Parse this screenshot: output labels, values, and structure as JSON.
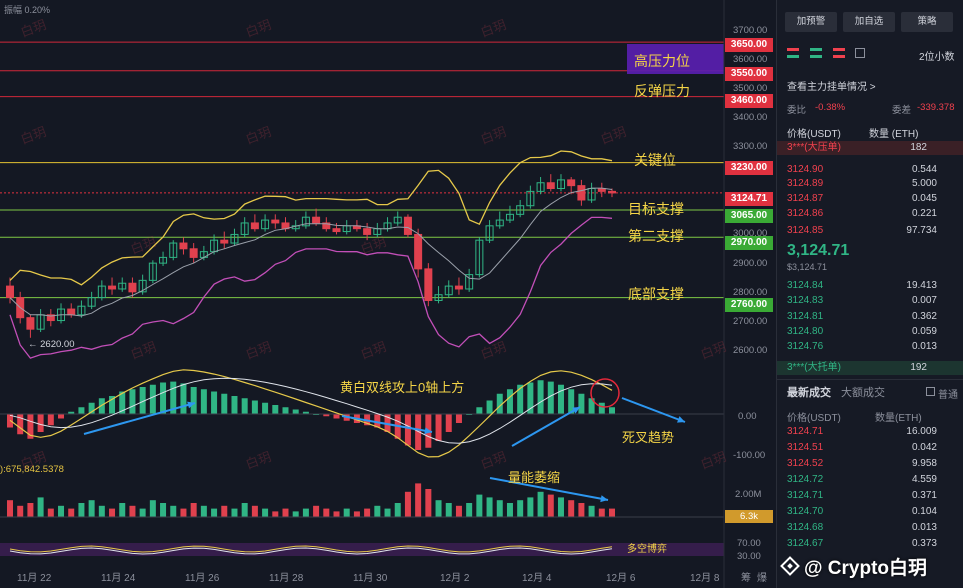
{
  "header": {
    "amplitude_label": "振幅 0.20%"
  },
  "levels": [
    {
      "label": "高压力位",
      "price": "3650.00",
      "tag_color": "#e0313f"
    },
    {
      "label": "",
      "price": "3600.00",
      "tag_color": ""
    },
    {
      "label": "",
      "price": "3550.00",
      "tag_color": "#e0313f"
    },
    {
      "label": "反弹压力",
      "price": "3460.00",
      "tag_color": "#e0313f"
    },
    {
      "label": "关键位",
      "price": "3230.00",
      "tag_color": "#e0313f"
    },
    {
      "label": "",
      "price": "3124.71",
      "tag_color": "#e0313f"
    },
    {
      "label": "目标支撑",
      "price": "3065.00",
      "tag_color": "#3aaa35"
    },
    {
      "label": "第二支撑",
      "price": "2970.00",
      "tag_color": "#3aaa35"
    },
    {
      "label": "底部支撑",
      "price": "2760.00",
      "tag_color": "#3aaa35"
    }
  ],
  "y_axis_ticks": [
    "3700.00",
    "3500.00",
    "3400.00",
    "3300.00",
    "3000.00",
    "2900.00",
    "2800.00",
    "2700.00",
    "2600.00"
  ],
  "low_marker": "← 2620.00",
  "x_axis_ticks": [
    "11月 22",
    "11月 24",
    "11月 26",
    "11月 28",
    "11月 30",
    "12月 2",
    "12月 4",
    "12月 6",
    "12月 8"
  ],
  "annotations": {
    "macd_note": "黄白双线攻上0轴上方",
    "death_cross": "死叉趋势",
    "volume_note": "量能萎缩",
    "bull_bear": "多空博弈"
  },
  "macd_axis": {
    "zero": "0.00",
    "neg": "-100.00"
  },
  "volume": {
    "prefix": "):675,842.5378",
    "max": "2.00M",
    "current": "6.3k"
  },
  "rsi_axis": [
    "70.00",
    "30.00"
  ],
  "axis_corner": [
    "筹",
    "爆"
  ],
  "watermark": "白玥",
  "brand": "@ Crypto白玥",
  "panel": {
    "buttons": [
      "加预警",
      "加自选",
      "策略"
    ],
    "precision": "2位小数",
    "main_order": "查看主力挂单情况 >",
    "ratio_label": "委比",
    "ratio_value": "-0.38%",
    "diff_label": "委差",
    "diff_value": "-339.378",
    "col_price": "价格(USDT)",
    "col_qty": "数量 (ETH)",
    "big_sell": "3***(大压单)",
    "big_sell_qty": "182",
    "asks": [
      {
        "price": "3124.90",
        "qty": "0.544"
      },
      {
        "price": "3124.89",
        "qty": "5.000"
      },
      {
        "price": "3124.87",
        "qty": "0.045"
      },
      {
        "price": "3124.86",
        "qty": "0.221"
      },
      {
        "price": "3124.85",
        "qty": "97.734"
      }
    ],
    "last_price": "3,124.71",
    "last_price_usd": "$3,124.71",
    "bids": [
      {
        "price": "3124.84",
        "qty": "19.413"
      },
      {
        "price": "3124.83",
        "qty": "0.007"
      },
      {
        "price": "3124.81",
        "qty": "0.362"
      },
      {
        "price": "3124.80",
        "qty": "0.059"
      },
      {
        "price": "3124.76",
        "qty": "0.013"
      }
    ],
    "big_buy": "3***(大托单)",
    "big_buy_qty": "192",
    "trades_tab": "最新成交",
    "big_trades_tab": "大额成交",
    "normal_label": "普通",
    "trade_col_price": "价格(USDT)",
    "trade_col_qty": "数量(ETH)",
    "trades": [
      {
        "price": "3124.71",
        "qty": "16.009",
        "side": "sell"
      },
      {
        "price": "3124.51",
        "qty": "0.042",
        "side": "sell"
      },
      {
        "price": "3124.52",
        "qty": "9.958",
        "side": "sell"
      },
      {
        "price": "3124.72",
        "qty": "4.559",
        "side": "buy"
      },
      {
        "price": "3124.71",
        "qty": "0.371",
        "side": "buy"
      },
      {
        "price": "3124.70",
        "qty": "0.104",
        "side": "buy"
      },
      {
        "price": "3124.68",
        "qty": "0.013",
        "side": "buy"
      },
      {
        "price": "3124.67",
        "qty": "0.373",
        "side": "buy"
      }
    ]
  },
  "chart_data": {
    "type": "candlestick",
    "symbol_quote": "USDT",
    "price_axis_range": [
      2560,
      3720
    ],
    "x_ticks": [
      "11月 22",
      "11月 24",
      "11月 26",
      "11月 28",
      "11月 30",
      "12月 2",
      "12月 4",
      "12月 6",
      "12月 8"
    ],
    "candles": [
      [
        2800,
        2760,
        2830,
        2740
      ],
      [
        2760,
        2690,
        2780,
        2670
      ],
      [
        2690,
        2650,
        2700,
        2620
      ],
      [
        2650,
        2700,
        2720,
        2640
      ],
      [
        2700,
        2680,
        2720,
        2660
      ],
      [
        2680,
        2720,
        2740,
        2670
      ],
      [
        2720,
        2700,
        2740,
        2690
      ],
      [
        2700,
        2730,
        2750,
        2690
      ],
      [
        2730,
        2760,
        2780,
        2720
      ],
      [
        2760,
        2800,
        2820,
        2750
      ],
      [
        2800,
        2790,
        2830,
        2770
      ],
      [
        2790,
        2810,
        2830,
        2780
      ],
      [
        2810,
        2780,
        2830,
        2760
      ],
      [
        2780,
        2820,
        2840,
        2770
      ],
      [
        2820,
        2880,
        2890,
        2810
      ],
      [
        2880,
        2900,
        2920,
        2870
      ],
      [
        2900,
        2950,
        2960,
        2890
      ],
      [
        2950,
        2930,
        2970,
        2910
      ],
      [
        2930,
        2900,
        2950,
        2880
      ],
      [
        2900,
        2920,
        2940,
        2890
      ],
      [
        2920,
        2960,
        2980,
        2910
      ],
      [
        2960,
        2950,
        2990,
        2930
      ],
      [
        2950,
        2980,
        3000,
        2940
      ],
      [
        2980,
        3020,
        3040,
        2970
      ],
      [
        3020,
        3000,
        3050,
        2990
      ],
      [
        3000,
        3030,
        3050,
        2990
      ],
      [
        3030,
        3020,
        3050,
        3000
      ],
      [
        3020,
        3000,
        3040,
        2990
      ],
      [
        3000,
        3010,
        3030,
        2990
      ],
      [
        3010,
        3040,
        3060,
        3000
      ],
      [
        3040,
        3020,
        3070,
        3010
      ],
      [
        3020,
        3000,
        3040,
        2990
      ],
      [
        3000,
        2990,
        3020,
        2980
      ],
      [
        2990,
        3010,
        3030,
        2980
      ],
      [
        3010,
        3000,
        3030,
        2990
      ],
      [
        3000,
        2980,
        3020,
        2960
      ],
      [
        2980,
        3000,
        3020,
        2970
      ],
      [
        3000,
        3020,
        3040,
        2990
      ],
      [
        3020,
        3040,
        3060,
        3010
      ],
      [
        3040,
        2980,
        3050,
        2970
      ],
      [
        2980,
        2860,
        3000,
        2830
      ],
      [
        2860,
        2750,
        2880,
        2730
      ],
      [
        2750,
        2770,
        2800,
        2740
      ],
      [
        2770,
        2800,
        2820,
        2760
      ],
      [
        2800,
        2790,
        2830,
        2770
      ],
      [
        2790,
        2840,
        2860,
        2780
      ],
      [
        2840,
        2960,
        2970,
        2830
      ],
      [
        2960,
        3010,
        3030,
        2950
      ],
      [
        3010,
        3030,
        3060,
        3000
      ],
      [
        3030,
        3050,
        3080,
        3020
      ],
      [
        3050,
        3080,
        3100,
        3040
      ],
      [
        3080,
        3130,
        3150,
        3070
      ],
      [
        3130,
        3160,
        3180,
        3120
      ],
      [
        3160,
        3140,
        3190,
        3130
      ],
      [
        3140,
        3170,
        3190,
        3130
      ],
      [
        3170,
        3150,
        3180,
        3120
      ],
      [
        3150,
        3100,
        3170,
        3080
      ],
      [
        3100,
        3140,
        3160,
        3090
      ],
      [
        3140,
        3130,
        3160,
        3110
      ],
      [
        3130,
        3124.71,
        3140,
        3110
      ]
    ],
    "levels": [
      3650,
      3600,
      3550,
      3460,
      3230,
      3124.71,
      3065,
      2970,
      2760
    ],
    "macd_hist": [
      -30,
      -45,
      -55,
      -40,
      -25,
      -10,
      5,
      15,
      25,
      35,
      40,
      50,
      55,
      60,
      65,
      70,
      72,
      68,
      60,
      55,
      50,
      45,
      40,
      35,
      30,
      25,
      20,
      15,
      10,
      5,
      0,
      -5,
      -10,
      -15,
      -20,
      -25,
      -30,
      -40,
      -55,
      -70,
      -80,
      -75,
      -60,
      -40,
      -20,
      0,
      15,
      30,
      45,
      55,
      65,
      70,
      75,
      72,
      65,
      55,
      45,
      35,
      25,
      15
    ],
    "volume": [
      0.6,
      0.4,
      0.5,
      0.7,
      0.3,
      0.4,
      0.3,
      0.5,
      0.6,
      0.4,
      0.3,
      0.5,
      0.4,
      0.3,
      0.6,
      0.5,
      0.4,
      0.3,
      0.5,
      0.4,
      0.3,
      0.4,
      0.3,
      0.5,
      0.4,
      0.3,
      0.2,
      0.3,
      0.2,
      0.3,
      0.4,
      0.3,
      0.2,
      0.3,
      0.2,
      0.3,
      0.4,
      0.3,
      0.5,
      0.9,
      1.2,
      1.0,
      0.6,
      0.5,
      0.4,
      0.5,
      0.8,
      0.7,
      0.6,
      0.5,
      0.6,
      0.7,
      0.9,
      0.8,
      0.7,
      0.6,
      0.5,
      0.4,
      0.3,
      0.3
    ]
  }
}
